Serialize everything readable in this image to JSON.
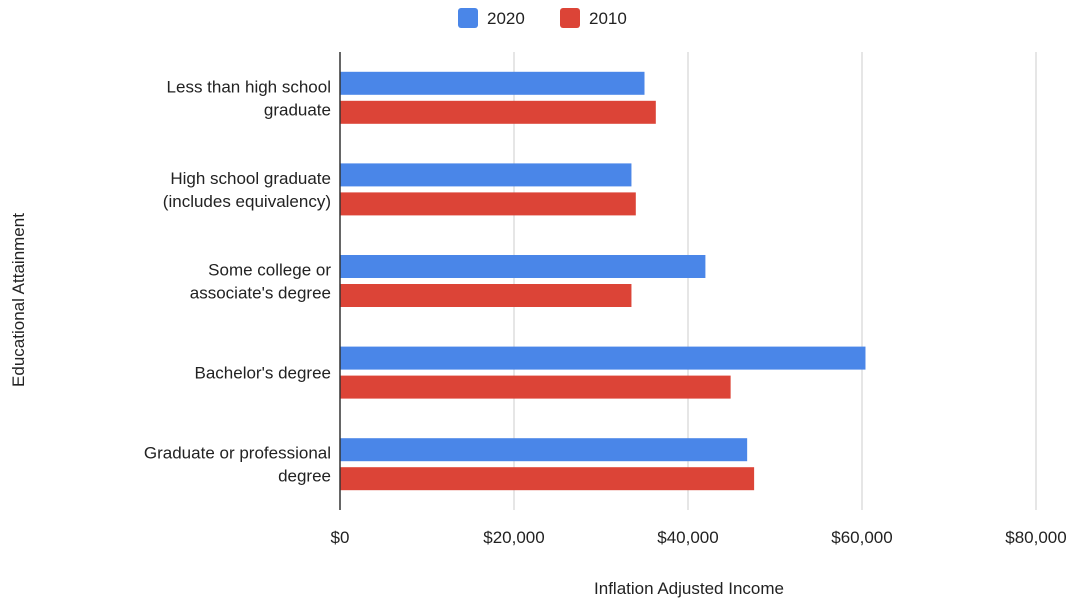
{
  "chart_data": {
    "type": "bar",
    "orientation": "horizontal",
    "categories": [
      [
        "Less than high school",
        "graduate"
      ],
      [
        "High school graduate",
        "(includes equivalency)"
      ],
      [
        "Some college or",
        "associate's degree"
      ],
      [
        "Bachelor's degree"
      ],
      [
        "Graduate or professional",
        "degree"
      ]
    ],
    "series": [
      {
        "name": "2020",
        "color": "#4a86e8",
        "values": [
          35000,
          33500,
          42000,
          60400,
          46800
        ]
      },
      {
        "name": "2010",
        "color": "#dc4437",
        "values": [
          36300,
          34000,
          33500,
          44900,
          47600
        ]
      }
    ],
    "xlabel": "Inflation Adjusted Income",
    "ylabel": "Educational Attainment",
    "xlim": [
      0,
      80000
    ],
    "xticks": [
      0,
      20000,
      40000,
      60000,
      80000
    ],
    "xtick_labels": [
      "$0",
      "$20,000",
      "$40,000",
      "$60,000",
      "$80,000"
    ],
    "grid": true,
    "legend": "top-center"
  }
}
